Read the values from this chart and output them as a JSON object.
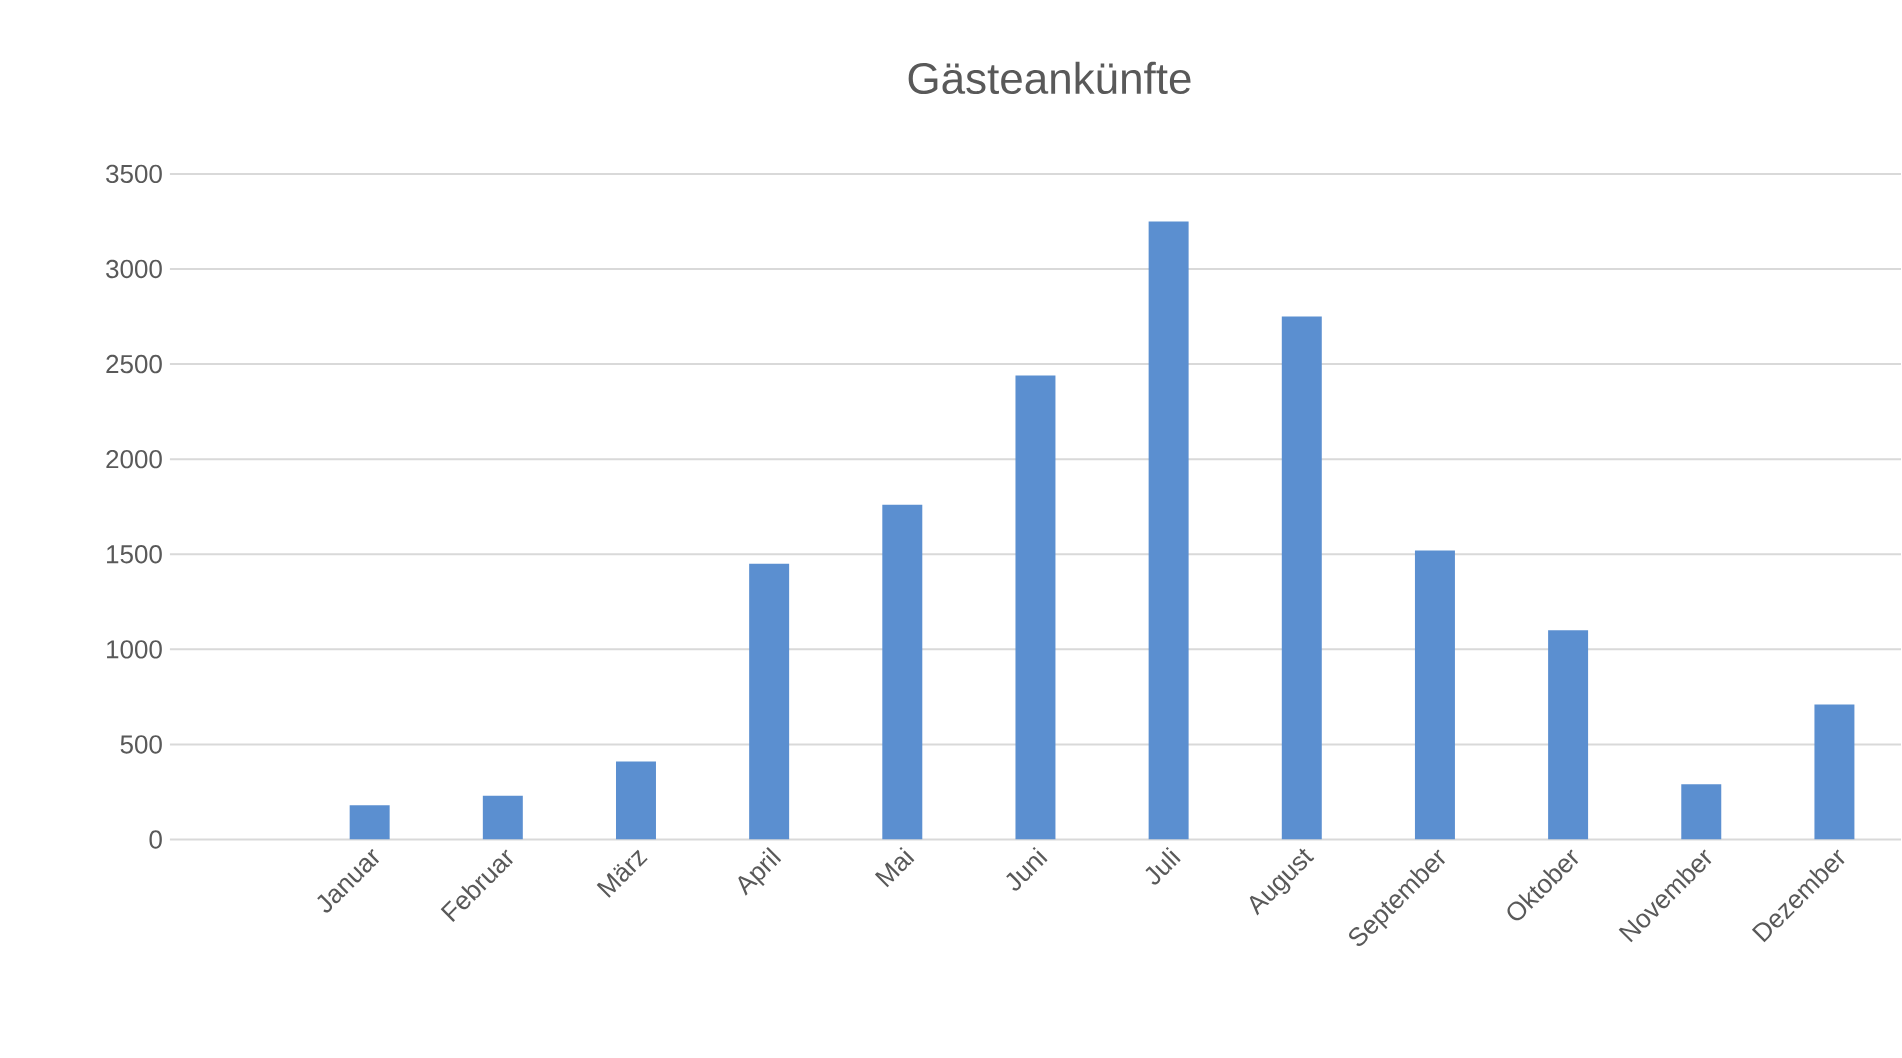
{
  "chart_data": {
    "type": "bar",
    "title": "Gästeankünfte",
    "categories": [
      null,
      "Januar",
      "Februar",
      "März",
      "April",
      "Mai",
      "Juni",
      "Juli",
      "August",
      "September",
      "Oktober",
      "November",
      "Dezember"
    ],
    "values": [
      null,
      180,
      230,
      410,
      1450,
      1760,
      2440,
      3250,
      2750,
      1520,
      1100,
      290,
      710
    ],
    "color": "#5b8fd0",
    "ylim": [
      0,
      3500
    ],
    "yticks": [
      0,
      500,
      1000,
      1500,
      2000,
      2500,
      3000,
      3500
    ],
    "grid": "y"
  }
}
